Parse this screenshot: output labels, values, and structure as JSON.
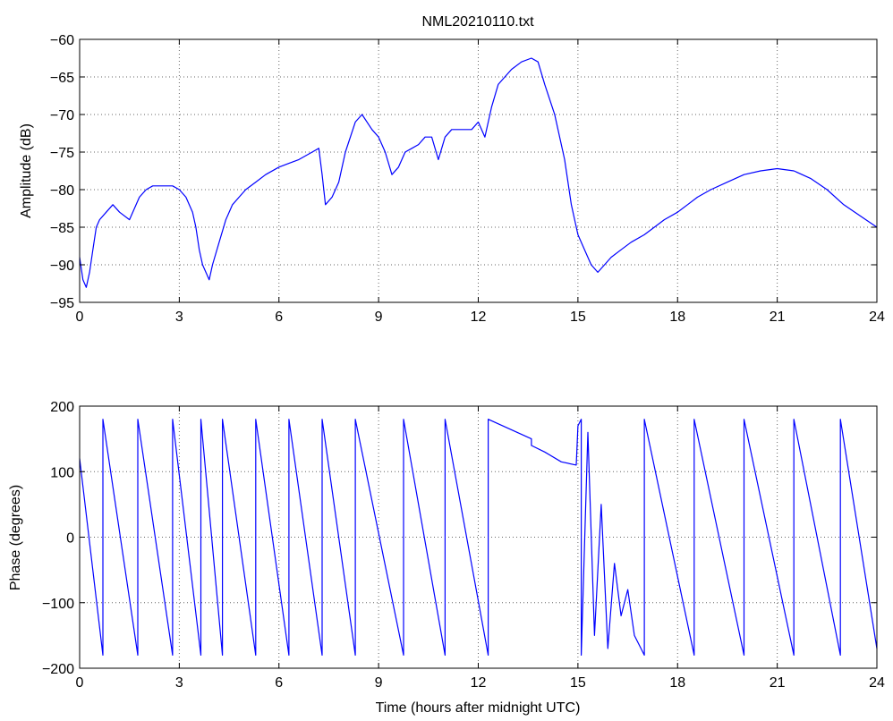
{
  "figure": {
    "title": "NML20210110.txt"
  },
  "chart_data": [
    {
      "type": "line",
      "title": "NML20210110.txt",
      "xlabel": "",
      "ylabel": "Amplitude (dB)",
      "xlim": [
        0,
        24
      ],
      "ylim": [
        -95,
        -60
      ],
      "xticks": [
        0,
        3,
        6,
        9,
        12,
        15,
        18,
        21,
        24
      ],
      "yticks": [
        -95,
        -90,
        -85,
        -80,
        -75,
        -70,
        -65,
        -60
      ],
      "grid": true,
      "line_color": "#0000ff",
      "series": [
        {
          "x": [
            0,
            0.1,
            0.2,
            0.3,
            0.4,
            0.5,
            0.6,
            0.8,
            1.0,
            1.2,
            1.5,
            1.8,
            2.0,
            2.2,
            2.5,
            2.8,
            3.0,
            3.2,
            3.4,
            3.5,
            3.6,
            3.7,
            3.8,
            3.9,
            4.0,
            4.2,
            4.4,
            4.6,
            4.8,
            5.0,
            5.3,
            5.6,
            6.0,
            6.3,
            6.6,
            7.0,
            7.2,
            7.3,
            7.4,
            7.6,
            7.8,
            8.0,
            8.3,
            8.5,
            8.8,
            9.0,
            9.2,
            9.4,
            9.6,
            9.8,
            10.0,
            10.2,
            10.4,
            10.6,
            10.8,
            11.0,
            11.2,
            11.5,
            11.8,
            12.0,
            12.2,
            12.4,
            12.6,
            12.8,
            13.0,
            13.3,
            13.6,
            13.8,
            14.0,
            14.3,
            14.6,
            14.8,
            15.0,
            15.2,
            15.4,
            15.6,
            15.8,
            16.0,
            16.3,
            16.6,
            17.0,
            17.3,
            17.6,
            18.0,
            18.3,
            18.6,
            19.0,
            19.5,
            20.0,
            20.5,
            21.0,
            21.5,
            22.0,
            22.5,
            23.0,
            23.5,
            24.0
          ],
          "y": [
            -89,
            -92,
            -93,
            -91,
            -88,
            -85,
            -84,
            -83,
            -82,
            -83,
            -84,
            -81,
            -80,
            -79.5,
            -79.5,
            -79.5,
            -80,
            -81,
            -83,
            -85,
            -88,
            -90,
            -91,
            -92,
            -90,
            -87,
            -84,
            -82,
            -81,
            -80,
            -79,
            -78,
            -77,
            -76.5,
            -76,
            -75,
            -74.5,
            -78,
            -82,
            -81,
            -79,
            -75,
            -71,
            -70,
            -72,
            -73,
            -75,
            -78,
            -77,
            -75,
            -74.5,
            -74,
            -73,
            -73,
            -76,
            -73,
            -72,
            -72,
            -72,
            -71,
            -73,
            -69,
            -66,
            -65,
            -64,
            -63,
            -62.5,
            -63,
            -66,
            -70,
            -76,
            -82,
            -86,
            -88,
            -90,
            -91,
            -90,
            -89,
            -88,
            -87,
            -86,
            -85,
            -84,
            -83,
            -82,
            -81,
            -80,
            -79,
            -78,
            -77.5,
            -77.2,
            -77.5,
            -78.5,
            -80,
            -82,
            -83.5,
            -85
          ]
        }
      ]
    },
    {
      "type": "line",
      "title": "",
      "xlabel": "Time (hours after midnight UTC)",
      "ylabel": "Phase (degrees)",
      "xlim": [
        0,
        24
      ],
      "ylim": [
        -200,
        200
      ],
      "xticks": [
        0,
        3,
        6,
        9,
        12,
        15,
        18,
        21,
        24
      ],
      "yticks": [
        -200,
        -100,
        0,
        100,
        200
      ],
      "grid": true,
      "line_color": "#0000ff",
      "series": [
        {
          "x": [
            0,
            0.7,
            0.7,
            1.75,
            1.75,
            2.8,
            2.8,
            3.65,
            3.65,
            4.3,
            4.3,
            5.3,
            5.3,
            6.3,
            6.3,
            7.3,
            7.3,
            8.3,
            8.3,
            9.75,
            9.75,
            11.0,
            11.0,
            12.3,
            12.3,
            13.6,
            13.6,
            14.0,
            14.5,
            14.95,
            15.0,
            15.1,
            15.1,
            15.3,
            15.5,
            15.7,
            15.9,
            16.1,
            16.3,
            16.5,
            16.7,
            17.0,
            17.0,
            18.5,
            18.5,
            20.0,
            20.0,
            21.5,
            21.5,
            22.9,
            22.9,
            24.0
          ],
          "y": [
            120,
            -180,
            180,
            -180,
            180,
            -180,
            180,
            -180,
            180,
            -180,
            180,
            -180,
            180,
            -180,
            180,
            -180,
            180,
            -180,
            180,
            -180,
            180,
            -180,
            180,
            -180,
            180,
            150,
            140,
            130,
            115,
            110,
            170,
            180,
            -180,
            160,
            -150,
            50,
            -170,
            -40,
            -120,
            -80,
            -150,
            -180,
            180,
            -180,
            180,
            -180,
            180,
            -180,
            180,
            -180,
            180,
            -170
          ]
        }
      ]
    }
  ]
}
